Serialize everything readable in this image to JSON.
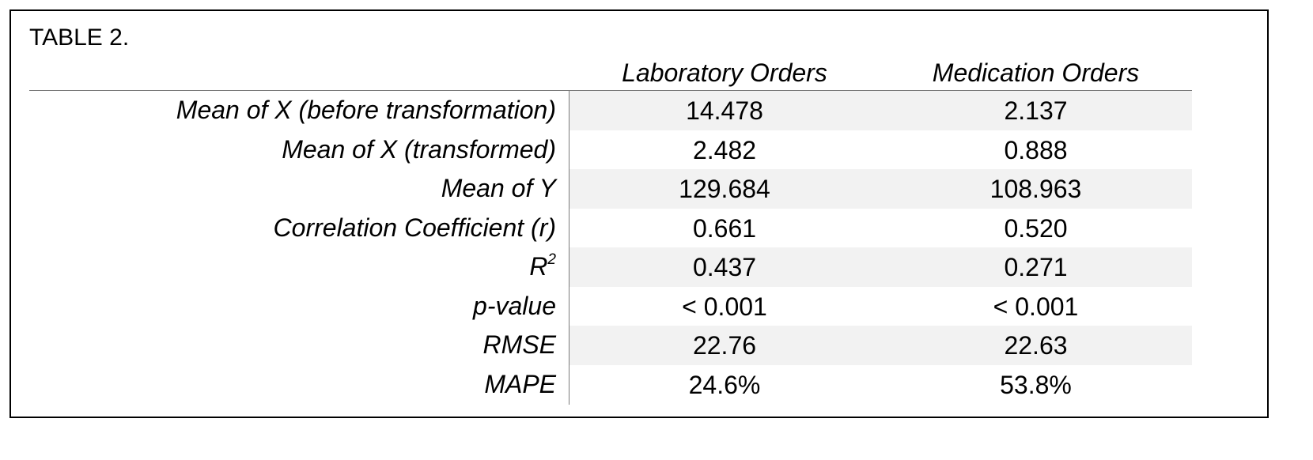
{
  "caption": "TABLE 2.",
  "columns": [
    "Laboratory Orders",
    "Medication Orders"
  ],
  "rows": [
    {
      "label": "Mean of X (before transformation)",
      "lab": "14.478",
      "med": "2.137",
      "shaded": true
    },
    {
      "label": "Mean of X (transformed)",
      "lab": "2.482",
      "med": "0.888",
      "shaded": false
    },
    {
      "label": "Mean of Y",
      "lab": "129.684",
      "med": "108.963",
      "shaded": true
    },
    {
      "label": "Correlation Coefficient (r)",
      "lab": "0.661",
      "med": "0.520",
      "shaded": false
    },
    {
      "label": "R",
      "label_sup": "2",
      "lab": "0.437",
      "med": "0.271",
      "shaded": true
    },
    {
      "label": "p-value",
      "lab": "< 0.001",
      "med": "< 0.001",
      "shaded": false
    },
    {
      "label": "RMSE",
      "lab": "22.76",
      "med": "22.63",
      "shaded": true
    },
    {
      "label": "MAPE",
      "lab": "24.6%",
      "med": "53.8%",
      "shaded": false
    }
  ]
}
